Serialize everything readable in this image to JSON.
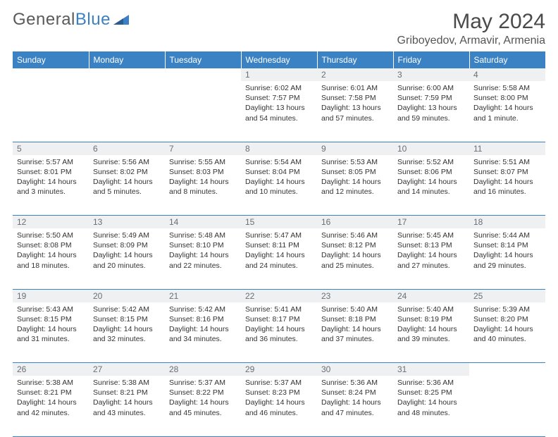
{
  "brand": {
    "part1": "General",
    "part2": "Blue"
  },
  "title": "May 2024",
  "location": "Griboyedov, Armavir, Armenia",
  "colors": {
    "header_bg": "#3b82c4",
    "daynum_bg": "#eef0f2",
    "border": "#3b82c4"
  },
  "weekdays": [
    "Sunday",
    "Monday",
    "Tuesday",
    "Wednesday",
    "Thursday",
    "Friday",
    "Saturday"
  ],
  "weeks": [
    [
      {
        "n": "",
        "sr": "",
        "ss": "",
        "dl": ""
      },
      {
        "n": "",
        "sr": "",
        "ss": "",
        "dl": ""
      },
      {
        "n": "",
        "sr": "",
        "ss": "",
        "dl": ""
      },
      {
        "n": "1",
        "sr": "6:02 AM",
        "ss": "7:57 PM",
        "dl": "13 hours and 54 minutes."
      },
      {
        "n": "2",
        "sr": "6:01 AM",
        "ss": "7:58 PM",
        "dl": "13 hours and 57 minutes."
      },
      {
        "n": "3",
        "sr": "6:00 AM",
        "ss": "7:59 PM",
        "dl": "13 hours and 59 minutes."
      },
      {
        "n": "4",
        "sr": "5:58 AM",
        "ss": "8:00 PM",
        "dl": "14 hours and 1 minute."
      }
    ],
    [
      {
        "n": "5",
        "sr": "5:57 AM",
        "ss": "8:01 PM",
        "dl": "14 hours and 3 minutes."
      },
      {
        "n": "6",
        "sr": "5:56 AM",
        "ss": "8:02 PM",
        "dl": "14 hours and 5 minutes."
      },
      {
        "n": "7",
        "sr": "5:55 AM",
        "ss": "8:03 PM",
        "dl": "14 hours and 8 minutes."
      },
      {
        "n": "8",
        "sr": "5:54 AM",
        "ss": "8:04 PM",
        "dl": "14 hours and 10 minutes."
      },
      {
        "n": "9",
        "sr": "5:53 AM",
        "ss": "8:05 PM",
        "dl": "14 hours and 12 minutes."
      },
      {
        "n": "10",
        "sr": "5:52 AM",
        "ss": "8:06 PM",
        "dl": "14 hours and 14 minutes."
      },
      {
        "n": "11",
        "sr": "5:51 AM",
        "ss": "8:07 PM",
        "dl": "14 hours and 16 minutes."
      }
    ],
    [
      {
        "n": "12",
        "sr": "5:50 AM",
        "ss": "8:08 PM",
        "dl": "14 hours and 18 minutes."
      },
      {
        "n": "13",
        "sr": "5:49 AM",
        "ss": "8:09 PM",
        "dl": "14 hours and 20 minutes."
      },
      {
        "n": "14",
        "sr": "5:48 AM",
        "ss": "8:10 PM",
        "dl": "14 hours and 22 minutes."
      },
      {
        "n": "15",
        "sr": "5:47 AM",
        "ss": "8:11 PM",
        "dl": "14 hours and 24 minutes."
      },
      {
        "n": "16",
        "sr": "5:46 AM",
        "ss": "8:12 PM",
        "dl": "14 hours and 25 minutes."
      },
      {
        "n": "17",
        "sr": "5:45 AM",
        "ss": "8:13 PM",
        "dl": "14 hours and 27 minutes."
      },
      {
        "n": "18",
        "sr": "5:44 AM",
        "ss": "8:14 PM",
        "dl": "14 hours and 29 minutes."
      }
    ],
    [
      {
        "n": "19",
        "sr": "5:43 AM",
        "ss": "8:15 PM",
        "dl": "14 hours and 31 minutes."
      },
      {
        "n": "20",
        "sr": "5:42 AM",
        "ss": "8:15 PM",
        "dl": "14 hours and 32 minutes."
      },
      {
        "n": "21",
        "sr": "5:42 AM",
        "ss": "8:16 PM",
        "dl": "14 hours and 34 minutes."
      },
      {
        "n": "22",
        "sr": "5:41 AM",
        "ss": "8:17 PM",
        "dl": "14 hours and 36 minutes."
      },
      {
        "n": "23",
        "sr": "5:40 AM",
        "ss": "8:18 PM",
        "dl": "14 hours and 37 minutes."
      },
      {
        "n": "24",
        "sr": "5:40 AM",
        "ss": "8:19 PM",
        "dl": "14 hours and 39 minutes."
      },
      {
        "n": "25",
        "sr": "5:39 AM",
        "ss": "8:20 PM",
        "dl": "14 hours and 40 minutes."
      }
    ],
    [
      {
        "n": "26",
        "sr": "5:38 AM",
        "ss": "8:21 PM",
        "dl": "14 hours and 42 minutes."
      },
      {
        "n": "27",
        "sr": "5:38 AM",
        "ss": "8:21 PM",
        "dl": "14 hours and 43 minutes."
      },
      {
        "n": "28",
        "sr": "5:37 AM",
        "ss": "8:22 PM",
        "dl": "14 hours and 45 minutes."
      },
      {
        "n": "29",
        "sr": "5:37 AM",
        "ss": "8:23 PM",
        "dl": "14 hours and 46 minutes."
      },
      {
        "n": "30",
        "sr": "5:36 AM",
        "ss": "8:24 PM",
        "dl": "14 hours and 47 minutes."
      },
      {
        "n": "31",
        "sr": "5:36 AM",
        "ss": "8:25 PM",
        "dl": "14 hours and 48 minutes."
      },
      {
        "n": "",
        "sr": "",
        "ss": "",
        "dl": ""
      }
    ]
  ]
}
